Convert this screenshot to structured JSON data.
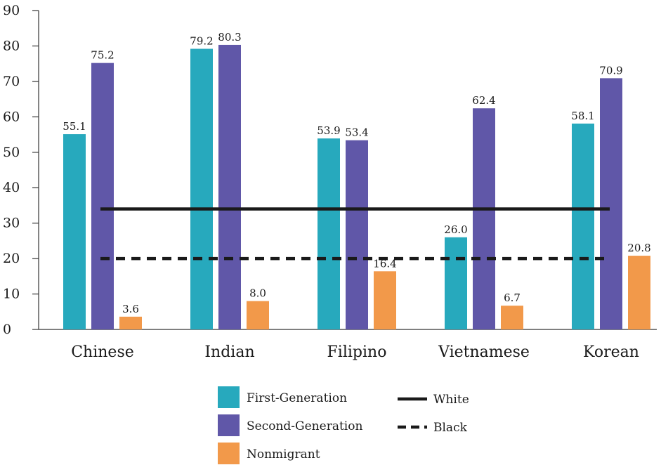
{
  "chart_data": {
    "type": "bar",
    "title": "",
    "xlabel": "",
    "ylabel": "",
    "ylim": [
      0,
      90
    ],
    "yticks": [
      0,
      10,
      20,
      30,
      40,
      50,
      60,
      70,
      80,
      90
    ],
    "grid": false,
    "legend_position": "bottom",
    "categories": [
      "Chinese",
      "Indian",
      "Filipino",
      "Vietnamese",
      "Korean"
    ],
    "series": [
      {
        "name": "First-Generation",
        "color": "#27a9bd",
        "values": [
          55.1,
          79.2,
          53.9,
          26.0,
          58.1
        ],
        "labels": [
          "55.1",
          "79.2",
          "53.9",
          "26.0",
          "58.1"
        ]
      },
      {
        "name": "Second-Generation",
        "color": "#6057a8",
        "values": [
          75.2,
          80.3,
          53.4,
          62.4,
          70.9
        ],
        "labels": [
          "75.2",
          "80.3",
          "53.4",
          "62.4",
          "70.9"
        ]
      },
      {
        "name": "Nonmigrant",
        "color": "#f2994a",
        "values": [
          3.6,
          8.0,
          16.4,
          6.7,
          20.8
        ],
        "labels": [
          "3.6",
          "8.0",
          "16.4",
          "6.7",
          "20.8"
        ]
      }
    ],
    "reference_lines": [
      {
        "name": "White",
        "value": 34,
        "style": "solid",
        "color": "#1a1a1a"
      },
      {
        "name": "Black",
        "value": 20,
        "style": "dashed",
        "color": "#1a1a1a"
      }
    ]
  }
}
